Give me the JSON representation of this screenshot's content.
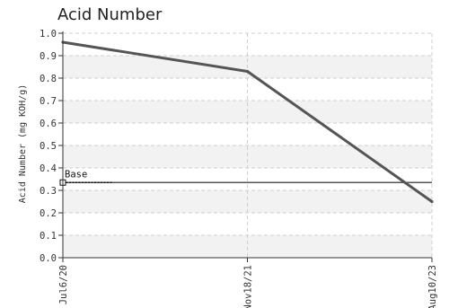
{
  "chart_data": {
    "type": "line",
    "title": "Acid Number",
    "ylabel": "Acid Number (mg KOH/g)",
    "xlabel": "",
    "categories": [
      "Jul6/20",
      "Nov18/21",
      "Aug10/23"
    ],
    "ylim": [
      0.0,
      1.0
    ],
    "yticks": [
      "0.0",
      "0.1",
      "0.2",
      "0.3",
      "0.4",
      "0.5",
      "0.6",
      "0.7",
      "0.8",
      "0.9",
      "1.0"
    ],
    "series": [
      {
        "values": [
          0.96,
          0.83,
          0.25
        ],
        "color": "#555555"
      }
    ],
    "baseline": {
      "label": "Base",
      "value": 0.335,
      "color": "#555555"
    },
    "grid": true,
    "band_colors": [
      "#f2f2f2",
      "#ffffff"
    ]
  }
}
